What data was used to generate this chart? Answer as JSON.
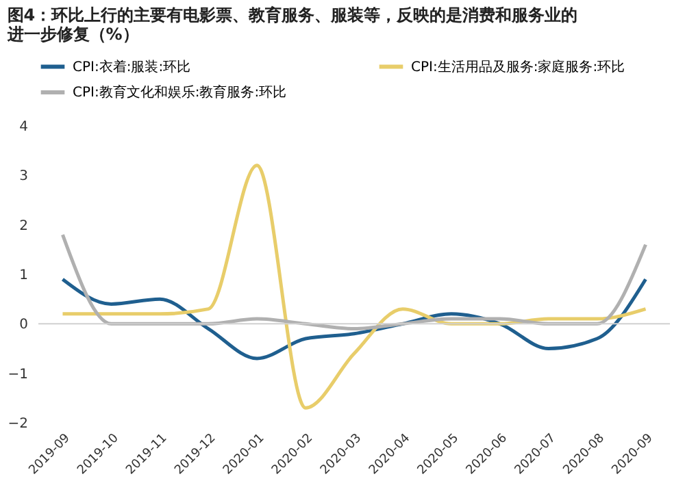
{
  "chart_data": {
    "type": "line",
    "title": [
      "图4：环比上行的主要有电影票、教育服务、服装等，反映的是消费和服务业的",
      "进一步修复（%）"
    ],
    "categories": [
      "2019-09",
      "2019-10",
      "2019-11",
      "2019-12",
      "2020-01",
      "2020-02",
      "2020-03",
      "2020-04",
      "2020-05",
      "2020-06",
      "2020-07",
      "2020-08",
      "2020-09"
    ],
    "series": [
      {
        "name": "CPI:衣着:服装:环比",
        "color": "#1f5f8f",
        "values": [
          0.9,
          0.4,
          0.5,
          -0.1,
          -0.7,
          -0.3,
          -0.2,
          0.0,
          0.2,
          0.0,
          -0.5,
          -0.3,
          0.9
        ]
      },
      {
        "name": "CPI:生活用品及服务:家庭服务:环比",
        "color": "#e8cd6a",
        "values": [
          0.2,
          0.2,
          0.2,
          0.3,
          3.2,
          -1.7,
          -0.6,
          0.3,
          0.0,
          0.0,
          0.1,
          0.1,
          0.3
        ]
      },
      {
        "name": "CPI:教育文化和娱乐:教育服务:环比",
        "color": "#b0b0b0",
        "values": [
          1.8,
          0.0,
          0.0,
          0.0,
          0.1,
          0.0,
          -0.1,
          0.0,
          0.1,
          0.1,
          0.0,
          0.0,
          1.6
        ]
      }
    ],
    "ylim": [
      -2,
      4
    ],
    "yticks": [
      -2,
      -1,
      0,
      1,
      2,
      3,
      4
    ],
    "ref_lines": [
      {
        "axis": "y",
        "value": 0,
        "color": "#d0d0d0"
      }
    ],
    "grid": false,
    "legend": "top",
    "marker": "none",
    "line_style": "solid"
  }
}
